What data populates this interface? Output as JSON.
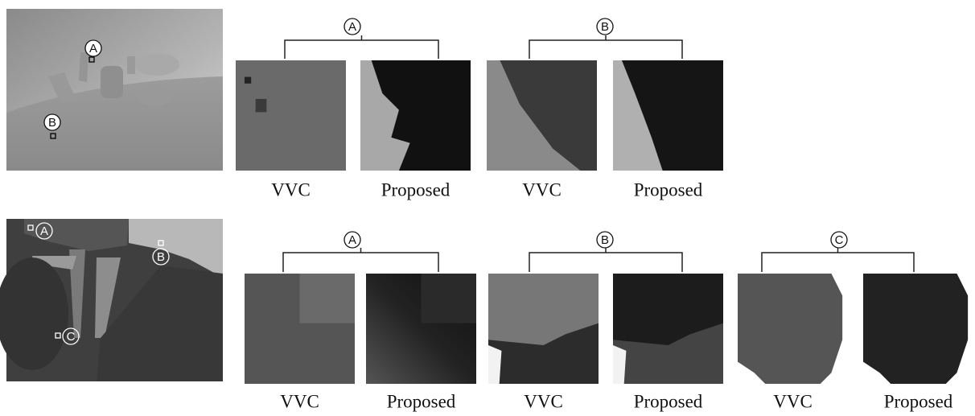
{
  "rows": [
    {
      "markers": [
        "A",
        "B"
      ],
      "groups": [
        {
          "label": "A",
          "crops": [
            "VVC",
            "Proposed"
          ]
        },
        {
          "label": "B",
          "crops": [
            "VVC",
            "Proposed"
          ]
        }
      ]
    },
    {
      "markers": [
        "A",
        "B",
        "C"
      ],
      "groups": [
        {
          "label": "A",
          "crops": [
            "VVC",
            "Proposed"
          ]
        },
        {
          "label": "B",
          "crops": [
            "VVC",
            "Proposed"
          ]
        },
        {
          "label": "C",
          "crops": [
            "VVC",
            "Proposed"
          ]
        }
      ]
    }
  ]
}
